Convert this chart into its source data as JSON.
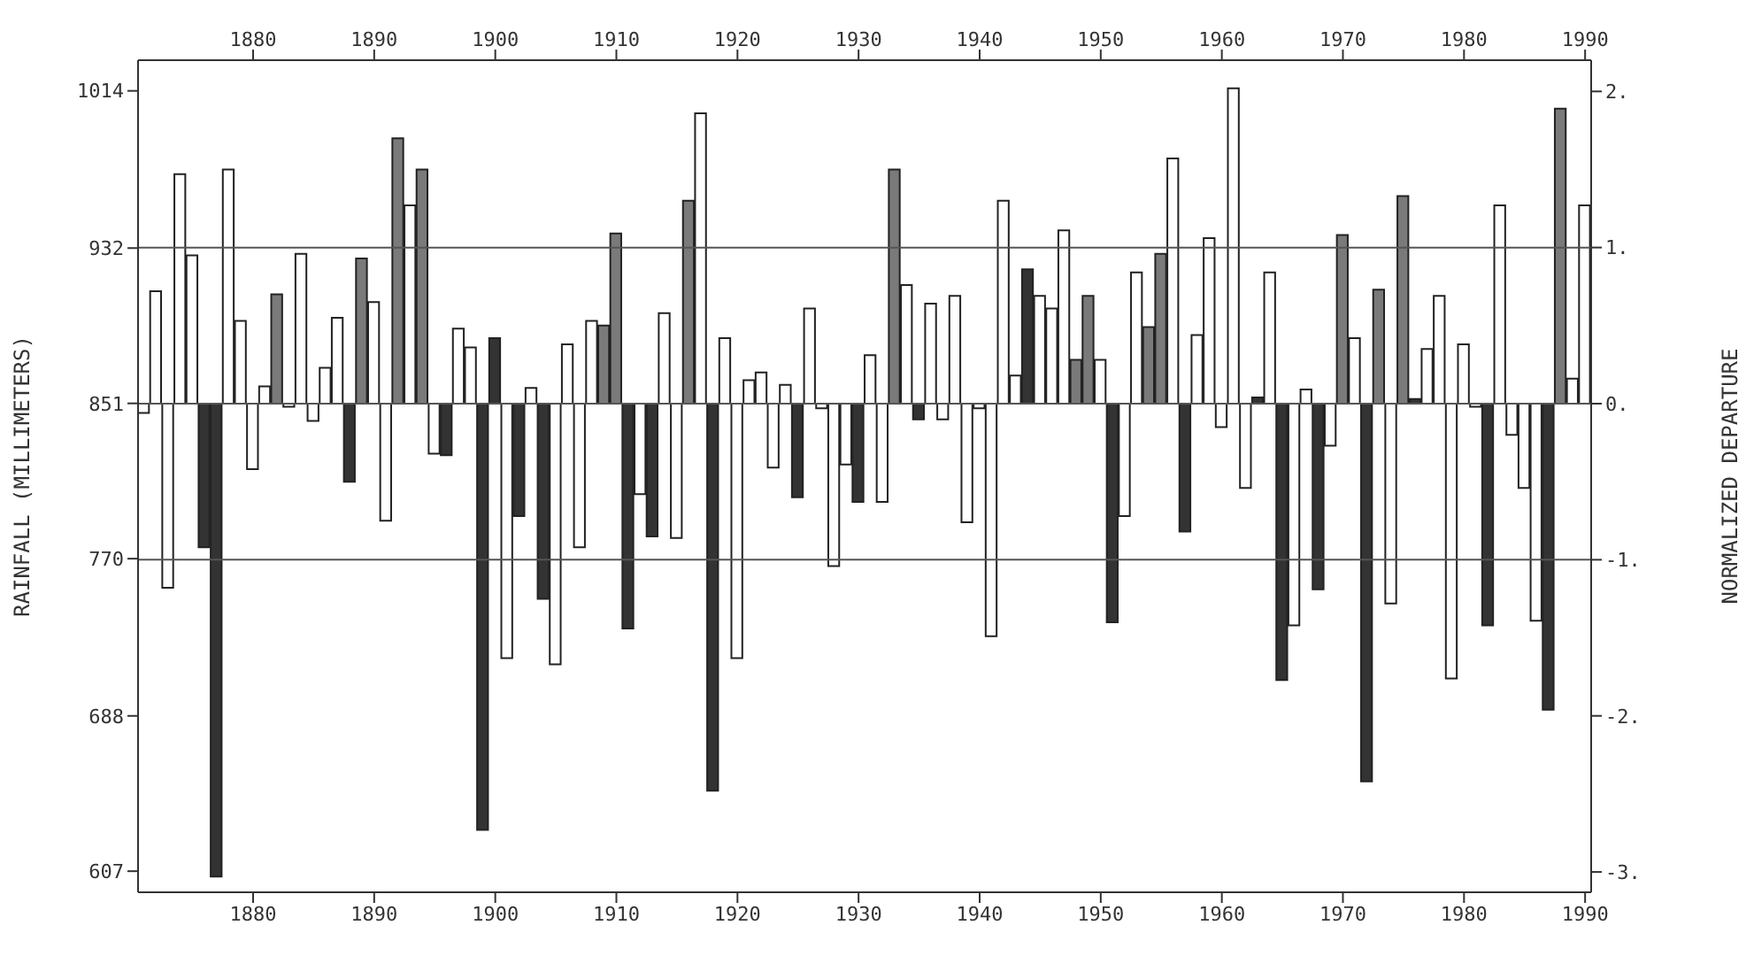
{
  "chart_data": {
    "type": "bar",
    "ylabel": "RAINFALL (MILLIMETERS)",
    "y2label": "NORMALIZED DEPARTURE",
    "x": [
      1871,
      1872,
      1873,
      1874,
      1875,
      1876,
      1877,
      1878,
      1879,
      1880,
      1881,
      1882,
      1883,
      1884,
      1885,
      1886,
      1887,
      1888,
      1889,
      1890,
      1891,
      1892,
      1893,
      1894,
      1895,
      1896,
      1897,
      1898,
      1899,
      1900,
      1901,
      1902,
      1903,
      1904,
      1905,
      1906,
      1907,
      1908,
      1909,
      1910,
      1911,
      1912,
      1913,
      1914,
      1915,
      1916,
      1917,
      1918,
      1919,
      1920,
      1921,
      1922,
      1923,
      1924,
      1925,
      1926,
      1927,
      1928,
      1929,
      1930,
      1931,
      1932,
      1933,
      1934,
      1935,
      1936,
      1937,
      1938,
      1939,
      1940,
      1941,
      1942,
      1943,
      1944,
      1945,
      1946,
      1947,
      1948,
      1949,
      1950,
      1951,
      1952,
      1953,
      1954,
      1955,
      1956,
      1957,
      1958,
      1959,
      1960,
      1961,
      1962,
      1963,
      1964,
      1965,
      1966,
      1967,
      1968,
      1969,
      1970,
      1971,
      1972,
      1973,
      1974,
      1975,
      1976,
      1977,
      1978,
      1979,
      1980,
      1981,
      1982,
      1983,
      1984,
      1985,
      1986,
      1987,
      1988,
      1989,
      1990
    ],
    "series": [
      {
        "color": "#ffffff",
        "axis": "y2",
        "values": [
          -0.06,
          0.72,
          -1.18,
          1.47,
          0.95,
          null,
          null,
          1.5,
          0.53,
          -0.42,
          0.11,
          null,
          -0.02,
          0.96,
          -0.11,
          0.23,
          0.55,
          null,
          null,
          0.65,
          -0.75,
          null,
          1.27,
          null,
          -0.32,
          null,
          0.48,
          0.36,
          null,
          null,
          -1.63,
          null,
          0.1,
          null,
          -1.67,
          0.38,
          -0.92,
          0.53,
          null,
          null,
          null,
          -0.58,
          null,
          0.58,
          -0.86,
          null,
          1.86,
          null,
          0.42,
          -1.63,
          0.15,
          0.2,
          -0.41,
          0.12,
          null,
          0.61,
          -0.03,
          -1.04,
          -0.39,
          null,
          0.31,
          -0.63,
          null,
          0.76,
          null,
          0.64,
          -0.1,
          0.69,
          -0.76,
          -0.03,
          -1.49,
          1.3,
          0.18,
          null,
          0.69,
          0.61,
          1.11,
          null,
          null,
          0.28,
          null,
          -0.72,
          0.84,
          null,
          null,
          1.57,
          null,
          0.44,
          1.06,
          -0.15,
          2.02,
          -0.54,
          null,
          0.84,
          null,
          -1.42,
          0.09,
          null,
          -0.27,
          null,
          0.42,
          null,
          null,
          -1.28,
          null,
          null,
          0.35,
          0.69,
          -1.76,
          0.38,
          -0.02,
          null,
          1.27,
          -0.2,
          -0.54,
          -1.39,
          null,
          null,
          0.16,
          1.27
        ]
      },
      {
        "color": "#333333",
        "axis": "y2",
        "values": [
          null,
          null,
          null,
          null,
          null,
          -0.92,
          -3.03,
          null,
          null,
          null,
          null,
          null,
          null,
          null,
          null,
          null,
          null,
          -0.5,
          null,
          null,
          null,
          null,
          null,
          null,
          null,
          -0.33,
          null,
          null,
          -2.73,
          0.42,
          null,
          -0.72,
          null,
          -1.25,
          null,
          null,
          null,
          null,
          null,
          null,
          -1.44,
          null,
          -0.85,
          null,
          null,
          null,
          null,
          -2.48,
          null,
          null,
          null,
          null,
          null,
          null,
          -0.6,
          null,
          null,
          null,
          null,
          -0.63,
          null,
          null,
          null,
          null,
          -0.1,
          null,
          null,
          null,
          null,
          null,
          null,
          null,
          null,
          0.86,
          null,
          null,
          null,
          null,
          null,
          null,
          -1.4,
          null,
          null,
          null,
          null,
          null,
          -0.82,
          null,
          null,
          null,
          null,
          null,
          0.04,
          null,
          -1.77,
          null,
          null,
          -1.19,
          null,
          null,
          null,
          -2.42,
          null,
          null,
          null,
          0.03,
          null,
          null,
          null,
          null,
          null,
          -1.42,
          null,
          null,
          null,
          null,
          -1.96,
          null,
          null,
          null
        ]
      },
      {
        "color": "#7a7a7a",
        "axis": "y2",
        "values": [
          null,
          null,
          null,
          null,
          null,
          null,
          null,
          null,
          null,
          null,
          null,
          0.7,
          null,
          null,
          null,
          null,
          null,
          null,
          0.93,
          null,
          null,
          1.7,
          null,
          1.5,
          null,
          null,
          null,
          null,
          null,
          null,
          null,
          null,
          null,
          null,
          null,
          null,
          null,
          null,
          0.5,
          1.09,
          null,
          null,
          null,
          null,
          null,
          1.3,
          null,
          null,
          null,
          null,
          null,
          null,
          null,
          null,
          null,
          null,
          null,
          null,
          null,
          null,
          null,
          null,
          1.5,
          null,
          null,
          null,
          null,
          null,
          null,
          null,
          null,
          null,
          null,
          null,
          null,
          null,
          null,
          0.28,
          0.69,
          null,
          null,
          null,
          null,
          0.49,
          0.96,
          null,
          null,
          null,
          null,
          null,
          null,
          null,
          null,
          null,
          null,
          null,
          null,
          null,
          null,
          1.08,
          null,
          null,
          0.73,
          null,
          1.33,
          null,
          null,
          null,
          null,
          null,
          null,
          null,
          null,
          null,
          null,
          null,
          null,
          1.89,
          null,
          null
        ]
      }
    ],
    "xlim": [
      1870.5,
      1990.5
    ],
    "xticks": [
      1880,
      1890,
      1900,
      1910,
      1920,
      1930,
      1940,
      1950,
      1960,
      1970,
      1980,
      1990
    ],
    "x2lim": [
      1870.5,
      1990.5
    ],
    "x2ticks": [
      1880,
      1890,
      1900,
      1910,
      1920,
      1930,
      1940,
      1950,
      1960,
      1970,
      1980,
      1990
    ],
    "ylim": [
      596,
      1030
    ],
    "yticks": [
      607,
      688,
      770,
      851,
      932,
      1014
    ],
    "y2lim": [
      -3.13,
      2.2
    ],
    "y2ticks": [
      {
        "value": 2,
        "label": "2."
      },
      {
        "value": 1,
        "label": "1."
      },
      {
        "value": 0,
        "label": "0."
      },
      {
        "value": -1,
        "label": "-1."
      },
      {
        "value": -2,
        "label": "-2."
      },
      {
        "value": -3,
        "label": "-3."
      }
    ],
    "ref_lines": [
      {
        "axis": "y2",
        "value": 1,
        "color": "#555555"
      },
      {
        "axis": "y2",
        "value": 0,
        "color": "#555555"
      },
      {
        "axis": "y2",
        "value": -1,
        "color": "#555555"
      }
    ]
  }
}
